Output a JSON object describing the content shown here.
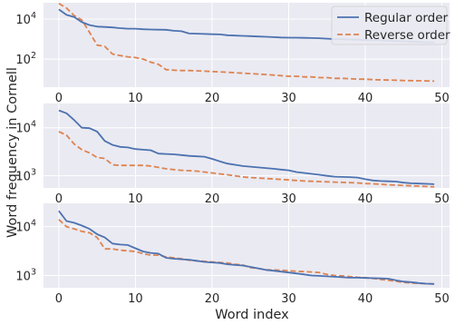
{
  "chart_data": {
    "type": "line",
    "ylabel": "Word frequency in Cornell",
    "xlabel": "Word index",
    "legend": {
      "placement": "top-right",
      "entries": [
        "Regular order",
        "Reverse order"
      ]
    },
    "grid": true,
    "colors": {
      "regular": "#4C72B0",
      "reverse": "#DD8452",
      "background": "#EAEAF2",
      "grid": "#FFFFFF"
    },
    "xlim": [
      -2,
      51
    ],
    "xticks": [
      0,
      10,
      20,
      30,
      40,
      50
    ],
    "panels": [
      {
        "yscale": "log",
        "ylim": [
          4,
          65000
        ],
        "yticks": [
          {
            "value": 100,
            "label": "10",
            "exp": "2"
          },
          {
            "value": 10000,
            "label": "10",
            "exp": "4"
          }
        ],
        "series": [
          {
            "name": "Regular order",
            "style": "solid",
            "values": [
              30000,
              16000,
              12500,
              7000,
              5000,
              4200,
              4000,
              3800,
              3500,
              3300,
              3300,
              3100,
              3000,
              2950,
              2900,
              2600,
              2450,
              1900,
              1850,
              1800,
              1750,
              1700,
              1550,
              1500,
              1450,
              1400,
              1350,
              1300,
              1250,
              1200,
              1180,
              1170,
              1150,
              1130,
              1100,
              1050,
              1000,
              980,
              950,
              930,
              900,
              880,
              860,
              830,
              800,
              780,
              750,
              730,
              700,
              680
            ]
          },
          {
            "name": "Reverse order",
            "style": "dashed",
            "values": [
              60000,
              35000,
              15000,
              9000,
              2200,
              500,
              430,
              180,
              150,
              130,
              120,
              100,
              70,
              55,
              30,
              28,
              27,
              27,
              26,
              25,
              24,
              23,
              22,
              21,
              20,
              19,
              18,
              17,
              16,
              15,
              14,
              14,
              13,
              13,
              12,
              12,
              11,
              11,
              10.5,
              10,
              10,
              9.5,
              9.2,
              9,
              8.8,
              8.6,
              8.5,
              8.3,
              8.2,
              8
            ]
          }
        ]
      },
      {
        "yscale": "log",
        "ylim": [
          560,
          32000
        ],
        "yticks": [
          {
            "value": 1000,
            "label": "10",
            "exp": "3"
          },
          {
            "value": 10000,
            "label": "10",
            "exp": "4"
          }
        ],
        "series": [
          {
            "name": "Regular order",
            "style": "solid",
            "values": [
              23000,
              20000,
              14500,
              10000,
              9800,
              8300,
              5300,
              4400,
              4000,
              3900,
              3600,
              3500,
              3400,
              2900,
              2850,
              2800,
              2700,
              2600,
              2550,
              2500,
              2250,
              2000,
              1800,
              1700,
              1600,
              1550,
              1500,
              1450,
              1400,
              1350,
              1300,
              1200,
              1150,
              1100,
              1050,
              1000,
              960,
              950,
              940,
              920,
              850,
              800,
              780,
              770,
              760,
              720,
              700,
              690,
              680,
              670
            ]
          },
          {
            "name": "Reverse order",
            "style": "dashed",
            "values": [
              8300,
              7000,
              4600,
              3500,
              3000,
              2400,
              2300,
              1700,
              1650,
              1650,
              1650,
              1650,
              1600,
              1500,
              1400,
              1350,
              1300,
              1280,
              1250,
              1200,
              1150,
              1100,
              1050,
              1000,
              950,
              920,
              900,
              880,
              860,
              840,
              820,
              800,
              780,
              770,
              760,
              750,
              740,
              730,
              720,
              710,
              690,
              680,
              670,
              650,
              640,
              630,
              620,
              610,
              600,
              590
            ]
          }
        ]
      },
      {
        "yscale": "log",
        "ylim": [
          560,
          30000
        ],
        "yticks": [
          {
            "value": 1000,
            "label": "10",
            "exp": "3"
          },
          {
            "value": 10000,
            "label": "10",
            "exp": "4"
          }
        ],
        "series": [
          {
            "name": "Regular order",
            "style": "solid",
            "values": [
              21000,
              13000,
              12000,
              10500,
              9000,
              7000,
              6000,
              4500,
              4300,
              4200,
              3600,
              3100,
              2900,
              2800,
              2300,
              2200,
              2150,
              2100,
              2000,
              1900,
              1850,
              1800,
              1700,
              1650,
              1600,
              1500,
              1400,
              1300,
              1250,
              1200,
              1150,
              1100,
              1050,
              1000,
              980,
              960,
              940,
              920,
              900,
              900,
              890,
              880,
              870,
              860,
              800,
              750,
              730,
              700,
              680,
              670
            ]
          },
          {
            "name": "Reverse order",
            "style": "dashed",
            "values": [
              14000,
              10000,
              9000,
              8000,
              7500,
              6000,
              3500,
              3500,
              3300,
              3200,
              3100,
              2800,
              2600,
              2600,
              2400,
              2300,
              2200,
              2050,
              2000,
              1950,
              1900,
              1850,
              1800,
              1700,
              1650,
              1450,
              1400,
              1300,
              1300,
              1280,
              1250,
              1220,
              1200,
              1180,
              1150,
              1050,
              1000,
              980,
              950,
              920,
              900,
              870,
              830,
              800,
              760,
              720,
              700,
              690,
              680,
              670
            ]
          }
        ]
      }
    ]
  }
}
